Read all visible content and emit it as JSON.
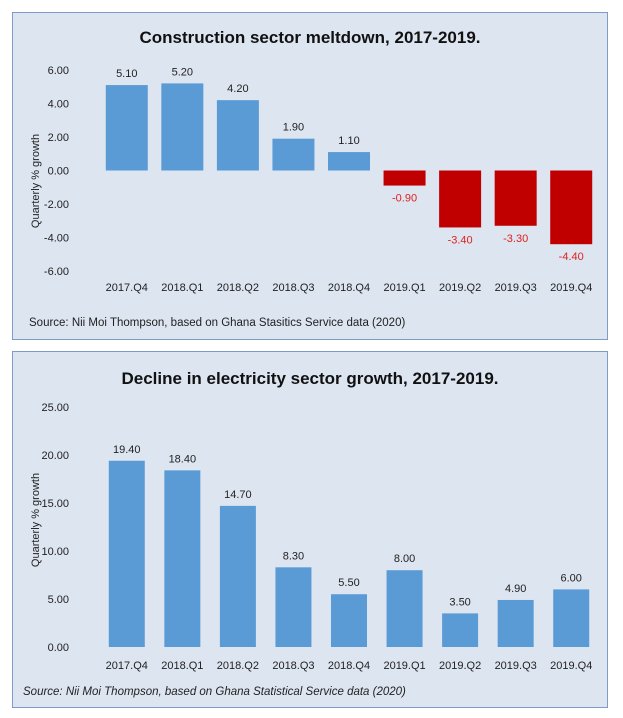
{
  "chart_data": [
    {
      "type": "bar",
      "title": "Construction sector meltdown, 2017-2019.",
      "ylabel": "Quarterly % growth",
      "xlabel": "",
      "source": "Source:  Nii Moi Thompson, based on Ghana Stasitics Service data (2020)",
      "categories": [
        "2017.Q4",
        "2018.Q1",
        "2018.Q2",
        "2018.Q3",
        "2018.Q4",
        "2019.Q1",
        "2019.Q2",
        "2019.Q3",
        "2019.Q4"
      ],
      "values": [
        5.1,
        5.2,
        4.2,
        1.9,
        1.1,
        -0.9,
        -3.4,
        -3.3,
        -4.4
      ],
      "value_labels": [
        "5.10",
        "5.20",
        "4.20",
        "1.90",
        "1.10",
        "-0.90",
        "-3.40",
        "-3.30",
        "-4.40"
      ],
      "ylim": [
        -6,
        6
      ],
      "yticks": [
        6,
        4,
        2,
        0,
        -2,
        -4,
        -6
      ],
      "ytick_labels": [
        "6.00",
        "4.00",
        "2.00",
        "0.00",
        "-2.00",
        "-4.00",
        "-6.00"
      ],
      "colors": {
        "positive": "#5b9bd5",
        "negative": "#c00000",
        "negative_label": "#e02020",
        "positive_label": "#222222"
      },
      "grid": false,
      "legend": "none"
    },
    {
      "type": "bar",
      "title": "Decline in electricity sector growth, 2017-2019.",
      "ylabel": "Quarterly % growth",
      "xlabel": "",
      "source": "Source:  Nii Moi Thompson, based on Ghana Statistical Service data (2020)",
      "categories": [
        "2017.Q4",
        "2018.Q1",
        "2018.Q2",
        "2018.Q3",
        "2018.Q4",
        "2019.Q1",
        "2019.Q2",
        "2019.Q3",
        "2019.Q4"
      ],
      "values": [
        19.4,
        18.4,
        14.7,
        8.3,
        5.5,
        8.0,
        3.5,
        4.9,
        6.0
      ],
      "value_labels": [
        "19.40",
        "18.40",
        "14.70",
        "8.30",
        "5.50",
        "8.00",
        "3.50",
        "4.90",
        "6.00"
      ],
      "ylim": [
        0,
        25
      ],
      "yticks": [
        25,
        20,
        15,
        10,
        5,
        0
      ],
      "ytick_labels": [
        "25.00",
        "20.00",
        "15.00",
        "10.00",
        "5.00",
        "0.00"
      ],
      "colors": {
        "positive": "#5b9bd5",
        "negative": "#c00000",
        "negative_label": "#e02020",
        "positive_label": "#222222"
      },
      "grid": false,
      "legend": "none"
    }
  ]
}
